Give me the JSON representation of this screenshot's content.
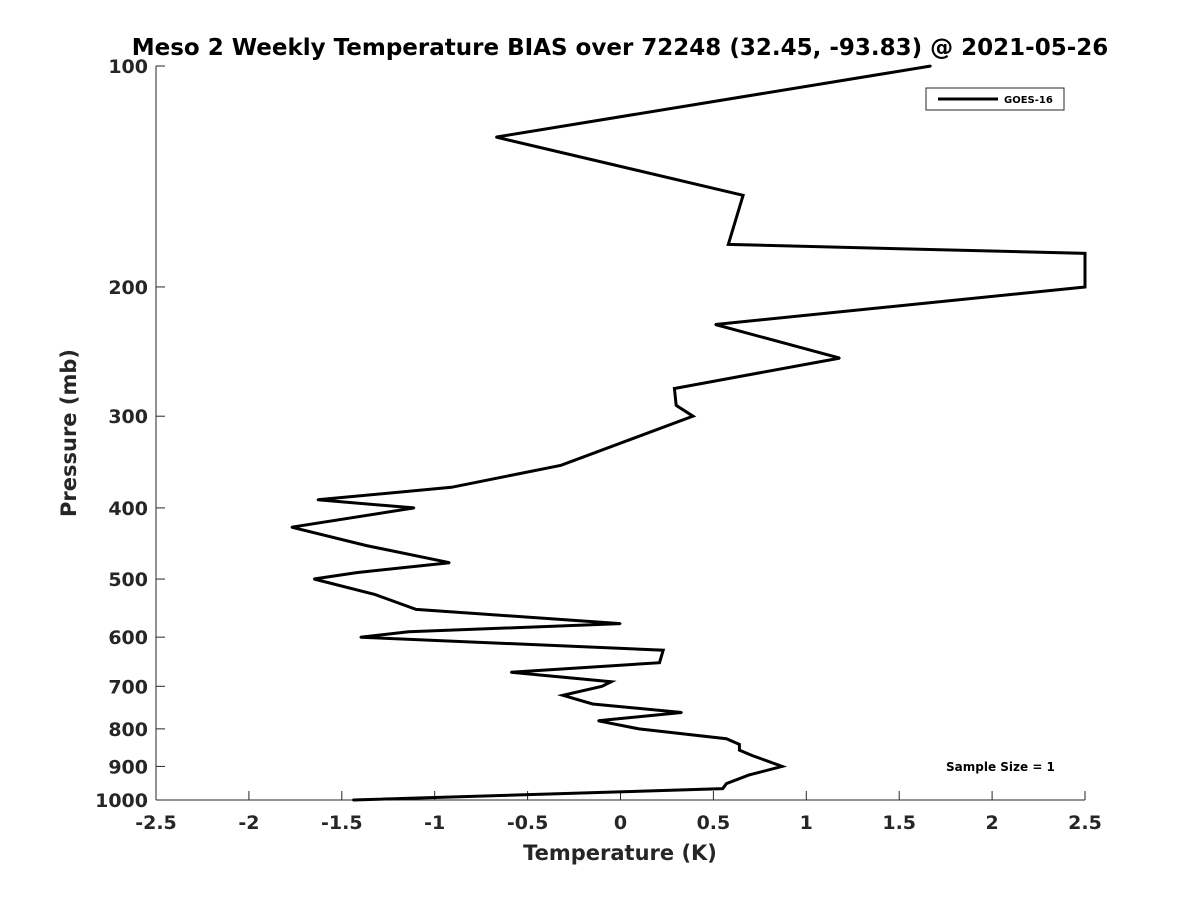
{
  "chart_data": {
    "type": "line",
    "title": "Meso 2 Weekly Temperature BIAS over 72248 (32.45, -93.83) @ 2021-05-26",
    "xlabel": "Temperature (K)",
    "ylabel": "Pressure (mb)",
    "xlim": [
      -2.5,
      2.5
    ],
    "ylim": [
      100,
      1000
    ],
    "y_scale": "log",
    "y_reversed": true,
    "x_ticks": [
      "-2.5",
      "-2",
      "-1.5",
      "-1",
      "-0.5",
      "0",
      "0.5",
      "1",
      "1.5",
      "2",
      "2.5"
    ],
    "y_ticks": [
      "100",
      "200",
      "300",
      "400",
      "500",
      "600",
      "700",
      "800",
      "900",
      "1000"
    ],
    "grid": false,
    "legend_position": "top-right",
    "line_color": "#000000",
    "series": [
      {
        "name": "GOES-16",
        "points": [
          {
            "x": 1.67,
            "y": 100
          },
          {
            "x": -0.67,
            "y": 125
          },
          {
            "x": 0.66,
            "y": 150
          },
          {
            "x": 0.58,
            "y": 175
          },
          {
            "x": 2.5,
            "y": 180
          },
          {
            "x": 2.5,
            "y": 200
          },
          {
            "x": 0.51,
            "y": 225
          },
          {
            "x": 1.18,
            "y": 250
          },
          {
            "x": 0.29,
            "y": 275
          },
          {
            "x": 0.3,
            "y": 290
          },
          {
            "x": 0.39,
            "y": 300
          },
          {
            "x": -0.32,
            "y": 350
          },
          {
            "x": -0.91,
            "y": 375
          },
          {
            "x": -1.63,
            "y": 390
          },
          {
            "x": -1.11,
            "y": 400
          },
          {
            "x": -1.77,
            "y": 425
          },
          {
            "x": -1.37,
            "y": 450
          },
          {
            "x": -0.92,
            "y": 475
          },
          {
            "x": -1.42,
            "y": 490
          },
          {
            "x": -1.65,
            "y": 500
          },
          {
            "x": -1.32,
            "y": 525
          },
          {
            "x": -1.1,
            "y": 550
          },
          {
            "x": 0.0,
            "y": 575
          },
          {
            "x": -1.14,
            "y": 590
          },
          {
            "x": -1.4,
            "y": 600
          },
          {
            "x": 0.23,
            "y": 625
          },
          {
            "x": 0.21,
            "y": 650
          },
          {
            "x": -0.59,
            "y": 670
          },
          {
            "x": -0.05,
            "y": 690
          },
          {
            "x": -0.1,
            "y": 700
          },
          {
            "x": -0.31,
            "y": 720
          },
          {
            "x": -0.15,
            "y": 740
          },
          {
            "x": 0.33,
            "y": 760
          },
          {
            "x": -0.12,
            "y": 780
          },
          {
            "x": 0.1,
            "y": 800
          },
          {
            "x": 0.57,
            "y": 825
          },
          {
            "x": 0.64,
            "y": 840
          },
          {
            "x": 0.64,
            "y": 855
          },
          {
            "x": 0.71,
            "y": 870
          },
          {
            "x": 0.87,
            "y": 900
          },
          {
            "x": 0.69,
            "y": 925
          },
          {
            "x": 0.57,
            "y": 950
          },
          {
            "x": 0.55,
            "y": 965
          },
          {
            "x": -0.01,
            "y": 975
          },
          {
            "x": -1.44,
            "y": 1000
          }
        ]
      }
    ],
    "annotations": [
      {
        "text": "Sample Size = 1"
      }
    ]
  }
}
